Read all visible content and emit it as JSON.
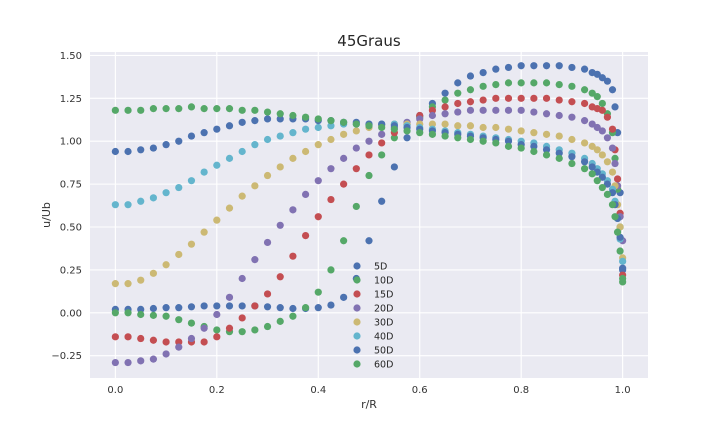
{
  "chart_data": {
    "type": "scatter",
    "title": "45Graus",
    "xlabel": "r/R",
    "ylabel": "u/Ub",
    "xlim": [
      -0.05,
      1.05
    ],
    "ylim": [
      -0.38,
      1.52
    ],
    "xticks": [
      0.0,
      0.2,
      0.4,
      0.6,
      0.8,
      1.0
    ],
    "xtick_labels": [
      "0.0",
      "0.2",
      "0.4",
      "0.6",
      "0.8",
      "1.0"
    ],
    "yticks": [
      -0.25,
      0.0,
      0.25,
      0.5,
      0.75,
      1.0,
      1.25,
      1.5
    ],
    "ytick_labels": [
      "−0.25",
      "0.00",
      "0.25",
      "0.50",
      "0.75",
      "1.00",
      "1.25",
      "1.50"
    ],
    "grid": true,
    "legend_position": "center-bottom",
    "x": [
      0.0,
      0.025,
      0.05,
      0.075,
      0.1,
      0.125,
      0.15,
      0.175,
      0.2,
      0.225,
      0.25,
      0.275,
      0.3,
      0.325,
      0.35,
      0.375,
      0.4,
      0.425,
      0.45,
      0.475,
      0.5,
      0.525,
      0.55,
      0.575,
      0.6,
      0.625,
      0.65,
      0.675,
      0.7,
      0.725,
      0.75,
      0.775,
      0.8,
      0.825,
      0.85,
      0.875,
      0.9,
      0.925,
      0.94,
      0.95,
      0.96,
      0.97,
      0.98,
      0.985,
      0.99,
      0.995,
      1.0
    ],
    "series": [
      {
        "name": "5D",
        "color": "#4c72b0",
        "values": [
          0.02,
          0.02,
          0.02,
          0.025,
          0.03,
          0.03,
          0.035,
          0.04,
          0.04,
          0.04,
          0.04,
          0.04,
          0.035,
          0.03,
          0.025,
          0.025,
          0.03,
          0.045,
          0.09,
          0.2,
          0.42,
          0.65,
          0.85,
          1.02,
          1.15,
          1.22,
          1.28,
          1.34,
          1.38,
          1.4,
          1.42,
          1.43,
          1.44,
          1.44,
          1.44,
          1.44,
          1.43,
          1.42,
          1.4,
          1.39,
          1.37,
          1.35,
          1.3,
          1.2,
          1.05,
          0.7,
          0.25
        ]
      },
      {
        "name": "10D",
        "color": "#55a868",
        "values": [
          0.0,
          0.0,
          -0.01,
          -0.015,
          -0.02,
          -0.04,
          -0.06,
          -0.08,
          -0.1,
          -0.11,
          -0.11,
          -0.1,
          -0.08,
          -0.05,
          -0.02,
          0.03,
          0.12,
          0.25,
          0.42,
          0.62,
          0.8,
          0.92,
          1.02,
          1.1,
          1.14,
          1.2,
          1.24,
          1.28,
          1.3,
          1.32,
          1.33,
          1.34,
          1.34,
          1.34,
          1.34,
          1.33,
          1.32,
          1.3,
          1.28,
          1.26,
          1.22,
          1.16,
          1.05,
          0.9,
          0.72,
          0.5,
          0.18
        ]
      },
      {
        "name": "15D",
        "color": "#c44e52",
        "values": [
          -0.14,
          -0.14,
          -0.15,
          -0.16,
          -0.17,
          -0.17,
          -0.17,
          -0.17,
          -0.14,
          -0.09,
          -0.03,
          0.04,
          0.11,
          0.21,
          0.33,
          0.45,
          0.56,
          0.66,
          0.75,
          0.84,
          0.92,
          0.99,
          1.05,
          1.1,
          1.15,
          1.18,
          1.2,
          1.22,
          1.23,
          1.24,
          1.25,
          1.25,
          1.25,
          1.25,
          1.25,
          1.24,
          1.23,
          1.22,
          1.2,
          1.19,
          1.18,
          1.14,
          1.07,
          0.95,
          0.78,
          0.58,
          0.22
        ]
      },
      {
        "name": "20D",
        "color": "#8172b2",
        "values": [
          -0.29,
          -0.29,
          -0.28,
          -0.27,
          -0.24,
          -0.2,
          -0.15,
          -0.09,
          -0.01,
          0.09,
          0.2,
          0.31,
          0.41,
          0.51,
          0.6,
          0.69,
          0.77,
          0.84,
          0.9,
          0.96,
          1.0,
          1.04,
          1.08,
          1.11,
          1.13,
          1.15,
          1.16,
          1.17,
          1.18,
          1.18,
          1.18,
          1.18,
          1.18,
          1.17,
          1.16,
          1.15,
          1.14,
          1.12,
          1.1,
          1.08,
          1.06,
          1.02,
          0.96,
          0.87,
          0.74,
          0.56,
          0.42
        ]
      },
      {
        "name": "30D",
        "color": "#ccb974",
        "values": [
          0.17,
          0.17,
          0.19,
          0.23,
          0.28,
          0.34,
          0.4,
          0.47,
          0.54,
          0.61,
          0.68,
          0.74,
          0.8,
          0.85,
          0.9,
          0.94,
          0.98,
          1.01,
          1.04,
          1.06,
          1.08,
          1.09,
          1.1,
          1.1,
          1.1,
          1.1,
          1.1,
          1.09,
          1.09,
          1.08,
          1.08,
          1.07,
          1.06,
          1.05,
          1.04,
          1.03,
          1.01,
          0.99,
          0.97,
          0.95,
          0.92,
          0.88,
          0.82,
          0.74,
          0.63,
          0.5,
          0.32
        ]
      },
      {
        "name": "40D",
        "color": "#64b5cd",
        "values": [
          0.63,
          0.63,
          0.65,
          0.67,
          0.7,
          0.73,
          0.77,
          0.82,
          0.86,
          0.9,
          0.94,
          0.98,
          1.01,
          1.03,
          1.05,
          1.07,
          1.08,
          1.09,
          1.1,
          1.1,
          1.1,
          1.1,
          1.1,
          1.09,
          1.08,
          1.07,
          1.06,
          1.05,
          1.04,
          1.03,
          1.02,
          1.01,
          1.0,
          0.99,
          0.97,
          0.95,
          0.93,
          0.9,
          0.87,
          0.84,
          0.81,
          0.77,
          0.72,
          0.65,
          0.55,
          0.43,
          0.3
        ]
      },
      {
        "name": "50D",
        "color": "#4c72b0",
        "values": [
          0.94,
          0.94,
          0.95,
          0.96,
          0.98,
          1.0,
          1.03,
          1.05,
          1.07,
          1.09,
          1.11,
          1.12,
          1.13,
          1.13,
          1.13,
          1.13,
          1.12,
          1.12,
          1.11,
          1.11,
          1.1,
          1.1,
          1.09,
          1.08,
          1.07,
          1.06,
          1.05,
          1.04,
          1.03,
          1.02,
          1.01,
          1.0,
          0.98,
          0.97,
          0.95,
          0.93,
          0.91,
          0.88,
          0.85,
          0.82,
          0.79,
          0.75,
          0.7,
          0.63,
          0.55,
          0.44,
          0.26
        ]
      },
      {
        "name": "60D",
        "color": "#55a868",
        "values": [
          1.18,
          1.18,
          1.18,
          1.19,
          1.19,
          1.19,
          1.2,
          1.19,
          1.19,
          1.19,
          1.18,
          1.18,
          1.17,
          1.16,
          1.15,
          1.14,
          1.13,
          1.12,
          1.11,
          1.1,
          1.09,
          1.08,
          1.07,
          1.06,
          1.05,
          1.04,
          1.03,
          1.02,
          1.01,
          1.0,
          0.99,
          0.97,
          0.96,
          0.94,
          0.92,
          0.9,
          0.87,
          0.84,
          0.81,
          0.77,
          0.73,
          0.69,
          0.63,
          0.56,
          0.47,
          0.36,
          0.2
        ]
      }
    ]
  }
}
